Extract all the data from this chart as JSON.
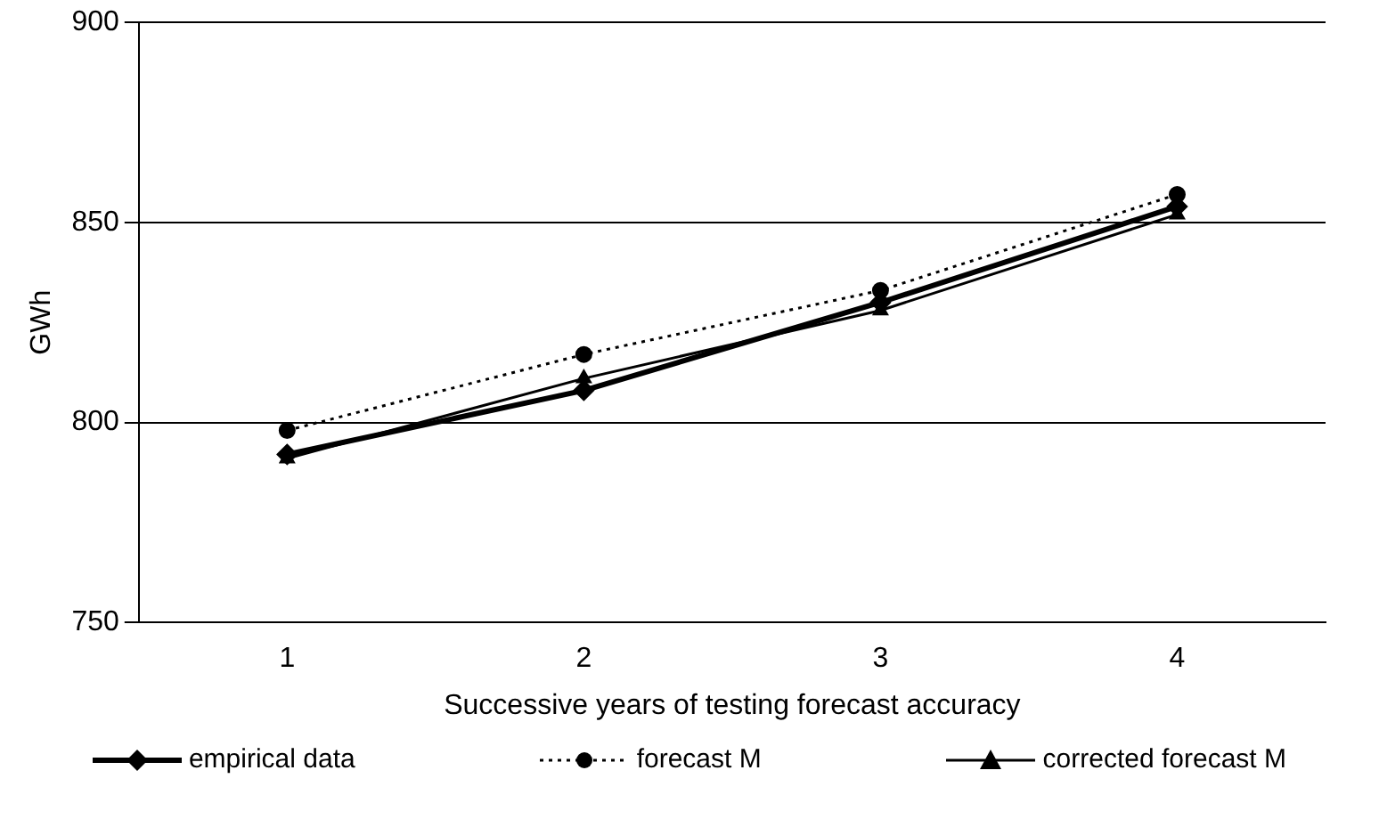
{
  "chart_data": {
    "type": "line",
    "xlabel": "Successive years of testing forecast accuracy",
    "ylabel": "GWh",
    "categories": [
      "1",
      "2",
      "3",
      "4"
    ],
    "series": [
      {
        "name": "empirical data",
        "color": "#000000",
        "marker": "diamond",
        "line_style": "solid",
        "values": [
          792,
          808,
          830,
          854
        ]
      },
      {
        "name": "forecast M",
        "color": "#000000",
        "marker": "circle",
        "line_style": "dotted",
        "values": [
          798,
          817,
          833,
          857
        ]
      },
      {
        "name": "corrected forecast M",
        "color": "#000000",
        "marker": "triangle",
        "line_style": "solid",
        "values": [
          791,
          811,
          828,
          852
        ]
      }
    ],
    "ylim": [
      750,
      900
    ],
    "yticks": [
      750,
      800,
      850,
      900
    ],
    "grid": "y",
    "legend": "bottom"
  }
}
